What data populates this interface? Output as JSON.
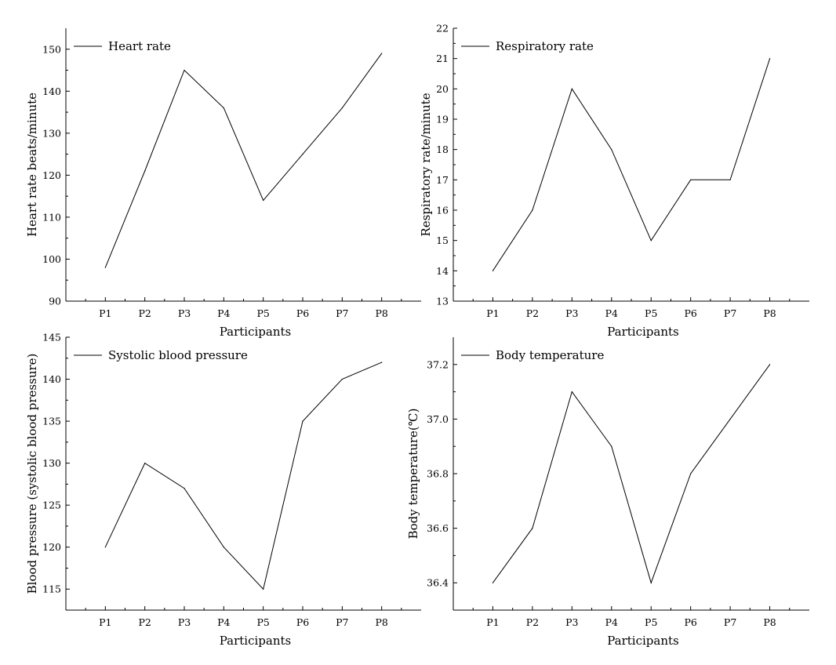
{
  "chart_data": [
    {
      "type": "line",
      "categories": [
        "P1",
        "P2",
        "P3",
        "P4",
        "P5",
        "P6",
        "P7",
        "P8"
      ],
      "series": [
        {
          "name": "Heart rate",
          "values": [
            98,
            121,
            145,
            136,
            114,
            125,
            136,
            149
          ]
        }
      ],
      "xlabel": "Participants",
      "ylabel": "Heart rate beats/minute",
      "ylim": [
        90,
        155
      ],
      "yticks": [
        90,
        100,
        110,
        120,
        130,
        140,
        150
      ],
      "legend": "top-left",
      "grid": false
    },
    {
      "type": "line",
      "categories": [
        "P1",
        "P2",
        "P3",
        "P4",
        "P5",
        "P6",
        "P7",
        "P8"
      ],
      "series": [
        {
          "name": "Respiratory rate",
          "values": [
            14,
            16,
            20,
            18,
            15,
            17,
            17,
            21
          ]
        }
      ],
      "xlabel": "Participants",
      "ylabel": "Respiratory rate/minute",
      "ylim": [
        13,
        22
      ],
      "yticks": [
        13,
        14,
        15,
        16,
        17,
        18,
        19,
        20,
        21,
        22
      ],
      "legend": "top-left",
      "grid": false
    },
    {
      "type": "line",
      "categories": [
        "P1",
        "P2",
        "P3",
        "P4",
        "P5",
        "P6",
        "P7",
        "P8"
      ],
      "series": [
        {
          "name": "Systolic blood pressure",
          "values": [
            120,
            130,
            127,
            120,
            115,
            135,
            140,
            142
          ]
        }
      ],
      "xlabel": "Participants",
      "ylabel": "Blood pressure (systolic blood pressure)",
      "ylim": [
        112.5,
        145
      ],
      "yticks": [
        115,
        120,
        125,
        130,
        135,
        140,
        145
      ],
      "legend": "top-left",
      "grid": false
    },
    {
      "type": "line",
      "categories": [
        "P1",
        "P2",
        "P3",
        "P4",
        "P5",
        "P6",
        "P7",
        "P8"
      ],
      "series": [
        {
          "name": "Body temperature",
          "values": [
            36.4,
            36.6,
            37.1,
            36.9,
            36.4,
            36.8,
            37.0,
            37.2
          ]
        }
      ],
      "xlabel": "Participants",
      "ylabel": "Body temperature(℃)",
      "ylim": [
        36.3,
        37.3
      ],
      "yticks": [
        "36.4",
        "36.6",
        "36.8",
        "37.0",
        "37.2"
      ],
      "legend": "top-left",
      "grid": false
    }
  ]
}
